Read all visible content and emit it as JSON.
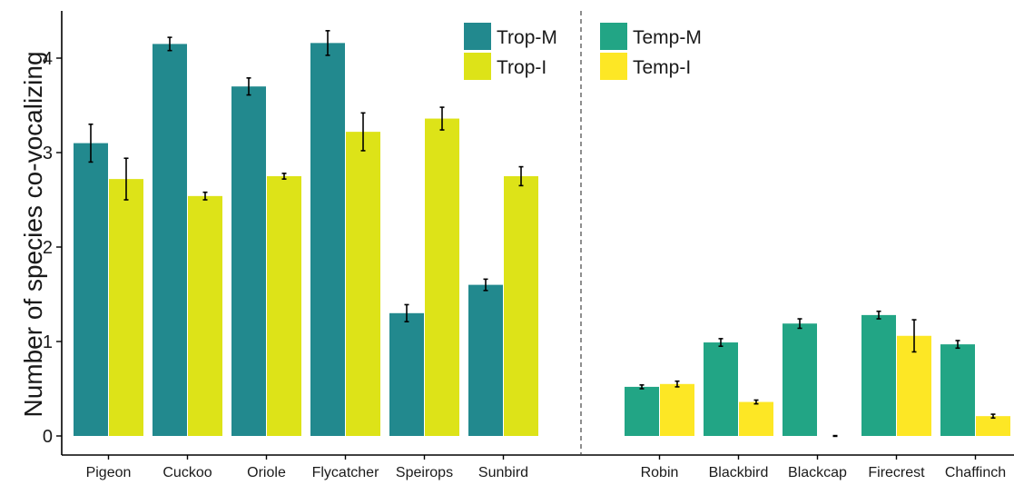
{
  "chart_data": {
    "type": "bar",
    "ylabel": "Number of species co-vocalizing",
    "xlabel": "",
    "ylim": [
      0,
      4.35
    ],
    "yticks": [
      0,
      1,
      2,
      3,
      4
    ],
    "grid": false,
    "colors": {
      "Trop-M": "#22898E",
      "Trop-I": "#DDE318",
      "Temp-M": "#22A585",
      "Temp-I": "#FDE725"
    },
    "legend_placement": "top-right",
    "groups": [
      {
        "panel": "tropical",
        "series_names": [
          "Trop-M",
          "Trop-I"
        ],
        "categories": [
          "Pigeon",
          "Cuckoo",
          "Oriole",
          "Flycatcher",
          "Speirops",
          "Sunbird"
        ],
        "series": [
          {
            "name": "Trop-M",
            "values": [
              3.1,
              4.15,
              3.7,
              4.16,
              1.3,
              1.6
            ],
            "errors": [
              0.2,
              0.07,
              0.09,
              0.13,
              0.09,
              0.06
            ]
          },
          {
            "name": "Trop-I",
            "values": [
              2.72,
              2.54,
              2.75,
              3.22,
              3.36,
              2.75
            ],
            "errors": [
              0.22,
              0.04,
              0.03,
              0.2,
              0.12,
              0.1
            ]
          }
        ]
      },
      {
        "panel": "temperate",
        "series_names": [
          "Temp-M",
          "Temp-I"
        ],
        "categories": [
          "Robin",
          "Blackbird",
          "Blackcap",
          "Firecrest",
          "Chaffinch"
        ],
        "series": [
          {
            "name": "Temp-M",
            "values": [
              0.52,
              0.99,
              1.19,
              1.28,
              0.97
            ],
            "errors": [
              0.02,
              0.04,
              0.05,
              0.04,
              0.04
            ]
          },
          {
            "name": "Temp-I",
            "values": [
              0.55,
              0.36,
              0.0,
              1.06,
              0.21
            ],
            "errors": [
              0.03,
              0.02,
              0.0,
              0.17,
              0.02
            ]
          }
        ]
      }
    ]
  }
}
